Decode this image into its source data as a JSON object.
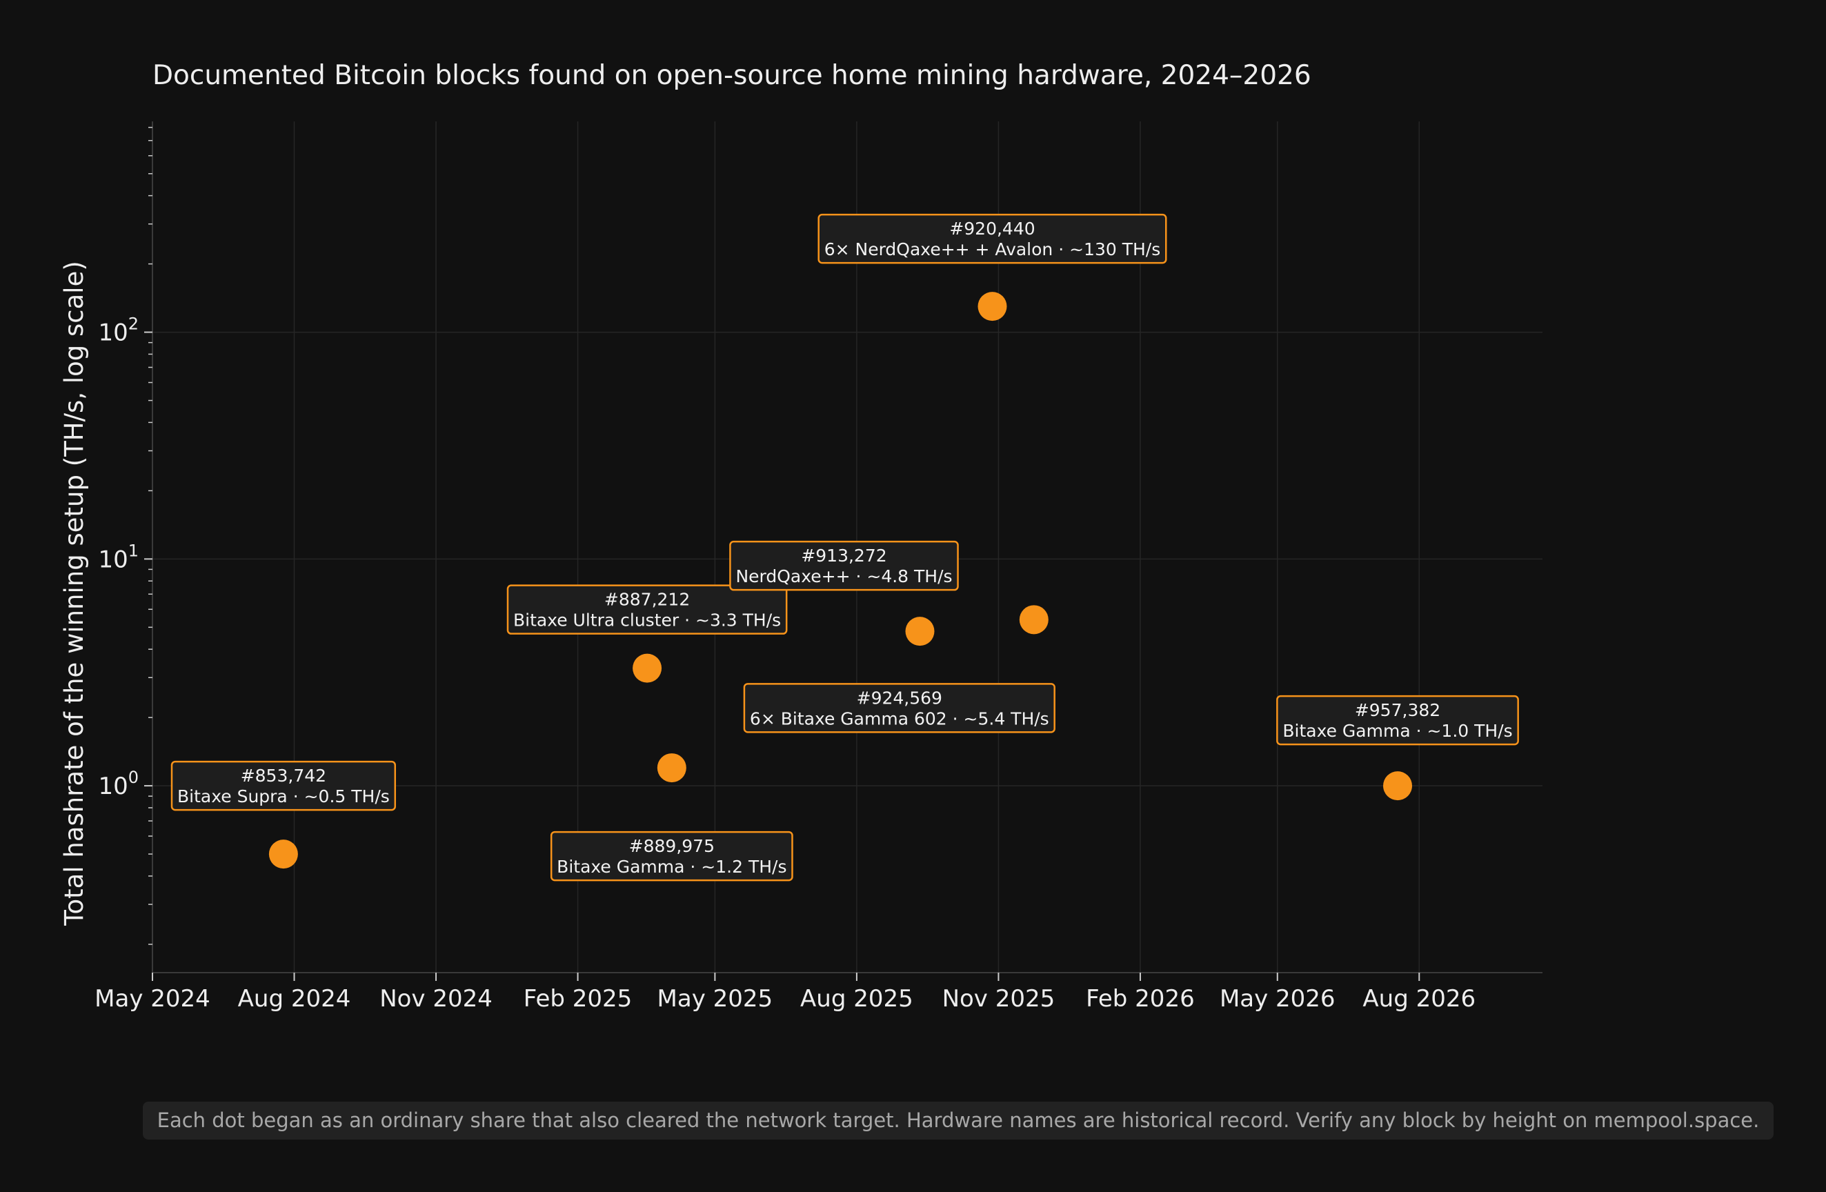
{
  "chart_data": {
    "type": "scatter",
    "title": "Documented Bitcoin blocks found on open-source home mining hardware, 2024–2026",
    "xlabel": "",
    "ylabel": "Total hashrate of the winning setup (TH/s, log scale)",
    "xscale": "date",
    "yscale": "log",
    "xlim": [
      "2024-05-01",
      "2026-10-20"
    ],
    "ylim": [
      0.15,
      850
    ],
    "x_ticks": [
      {
        "date": "2024-05-01",
        "label": "May 2024"
      },
      {
        "date": "2024-08-01",
        "label": "Aug 2024"
      },
      {
        "date": "2024-11-01",
        "label": "Nov 2024"
      },
      {
        "date": "2025-02-01",
        "label": "Feb 2025"
      },
      {
        "date": "2025-05-01",
        "label": "May 2025"
      },
      {
        "date": "2025-08-01",
        "label": "Aug 2025"
      },
      {
        "date": "2025-11-01",
        "label": "Nov 2025"
      },
      {
        "date": "2026-02-01",
        "label": "Feb 2026"
      },
      {
        "date": "2026-05-01",
        "label": "May 2026"
      },
      {
        "date": "2026-08-01",
        "label": "Aug 2026"
      }
    ],
    "y_ticks": [
      {
        "value": 1,
        "base": "10",
        "exp": "0"
      },
      {
        "value": 10,
        "base": "10",
        "exp": "1"
      },
      {
        "value": 100,
        "base": "10",
        "exp": "2"
      }
    ],
    "grid": true,
    "legend": "none",
    "marker_color": "#f7931a",
    "points": [
      {
        "date": "2024-07-25",
        "y": 0.5,
        "block": "#853,742",
        "setup": "Bitaxe Supra · ~0.5 TH/s"
      },
      {
        "date": "2025-03-18",
        "y": 3.3,
        "block": "#887,212",
        "setup": "Bitaxe Ultra cluster · ~3.3 TH/s"
      },
      {
        "date": "2025-04-03",
        "y": 1.2,
        "block": "#889,975",
        "setup": "Bitaxe Gamma · ~1.2 TH/s"
      },
      {
        "date": "2025-09-11",
        "y": 4.8,
        "block": "#913,272",
        "setup": "NerdQaxe++ · ~4.8 TH/s"
      },
      {
        "date": "2025-10-28",
        "y": 130,
        "block": "#920,440",
        "setup": "6× NerdQaxe++ + Avalon · ~130 TH/s"
      },
      {
        "date": "2025-11-24",
        "y": 5.4,
        "block": "#924,569",
        "setup": "6× Bitaxe Gamma 602 · ~5.4 TH/s"
      },
      {
        "date": "2026-07-18",
        "y": 1.0,
        "block": "#957,382",
        "setup": "Bitaxe Gamma · ~1.0 TH/s"
      }
    ]
  },
  "footnote": "Each dot began as an ordinary share that also cleared the network target. Hardware names are historical record. Verify any block by height on mempool.space."
}
